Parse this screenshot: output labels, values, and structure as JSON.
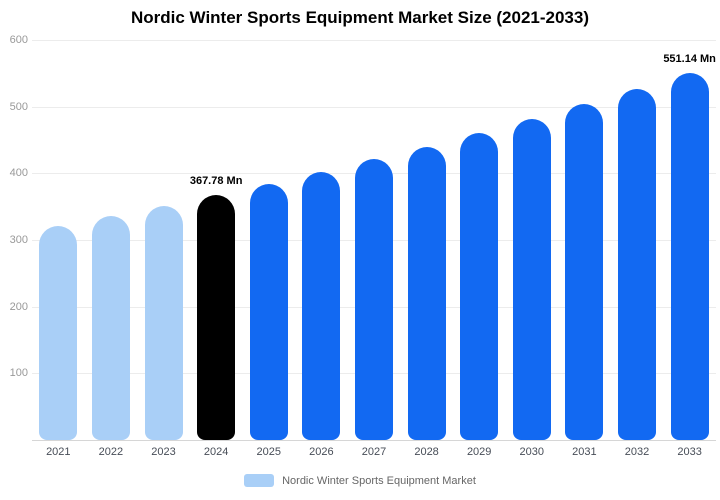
{
  "chart_data": {
    "type": "bar",
    "title": "Nordic Winter Sports Equipment Market Size (2021-2033)",
    "categories": [
      "2021",
      "2022",
      "2023",
      "2024",
      "2025",
      "2026",
      "2027",
      "2028",
      "2029",
      "2030",
      "2031",
      "2032",
      "2033"
    ],
    "values": [
      321.4,
      336.2,
      351.6,
      367.78,
      384.7,
      402.3,
      420.8,
      440.2,
      460.4,
      481.6,
      503.8,
      526.9,
      551.14
    ],
    "bar_colors": [
      "#a9cff7",
      "#a9cff7",
      "#a9cff7",
      "#000000",
      "#1269f2",
      "#1269f2",
      "#1269f2",
      "#1269f2",
      "#1269f2",
      "#1269f2",
      "#1269f2",
      "#1269f2",
      "#1269f2"
    ],
    "data_labels": {
      "2024": "367.78 Mn",
      "2033": "551.14 Mn"
    },
    "ylim": [
      0,
      600
    ],
    "yticks": [
      100,
      200,
      300,
      400,
      500,
      600
    ],
    "grid": true,
    "legend_position": "bottom",
    "legend": [
      {
        "label": "Nordic Winter Sports Equipment Market",
        "color": "#a9cff7"
      }
    ]
  }
}
